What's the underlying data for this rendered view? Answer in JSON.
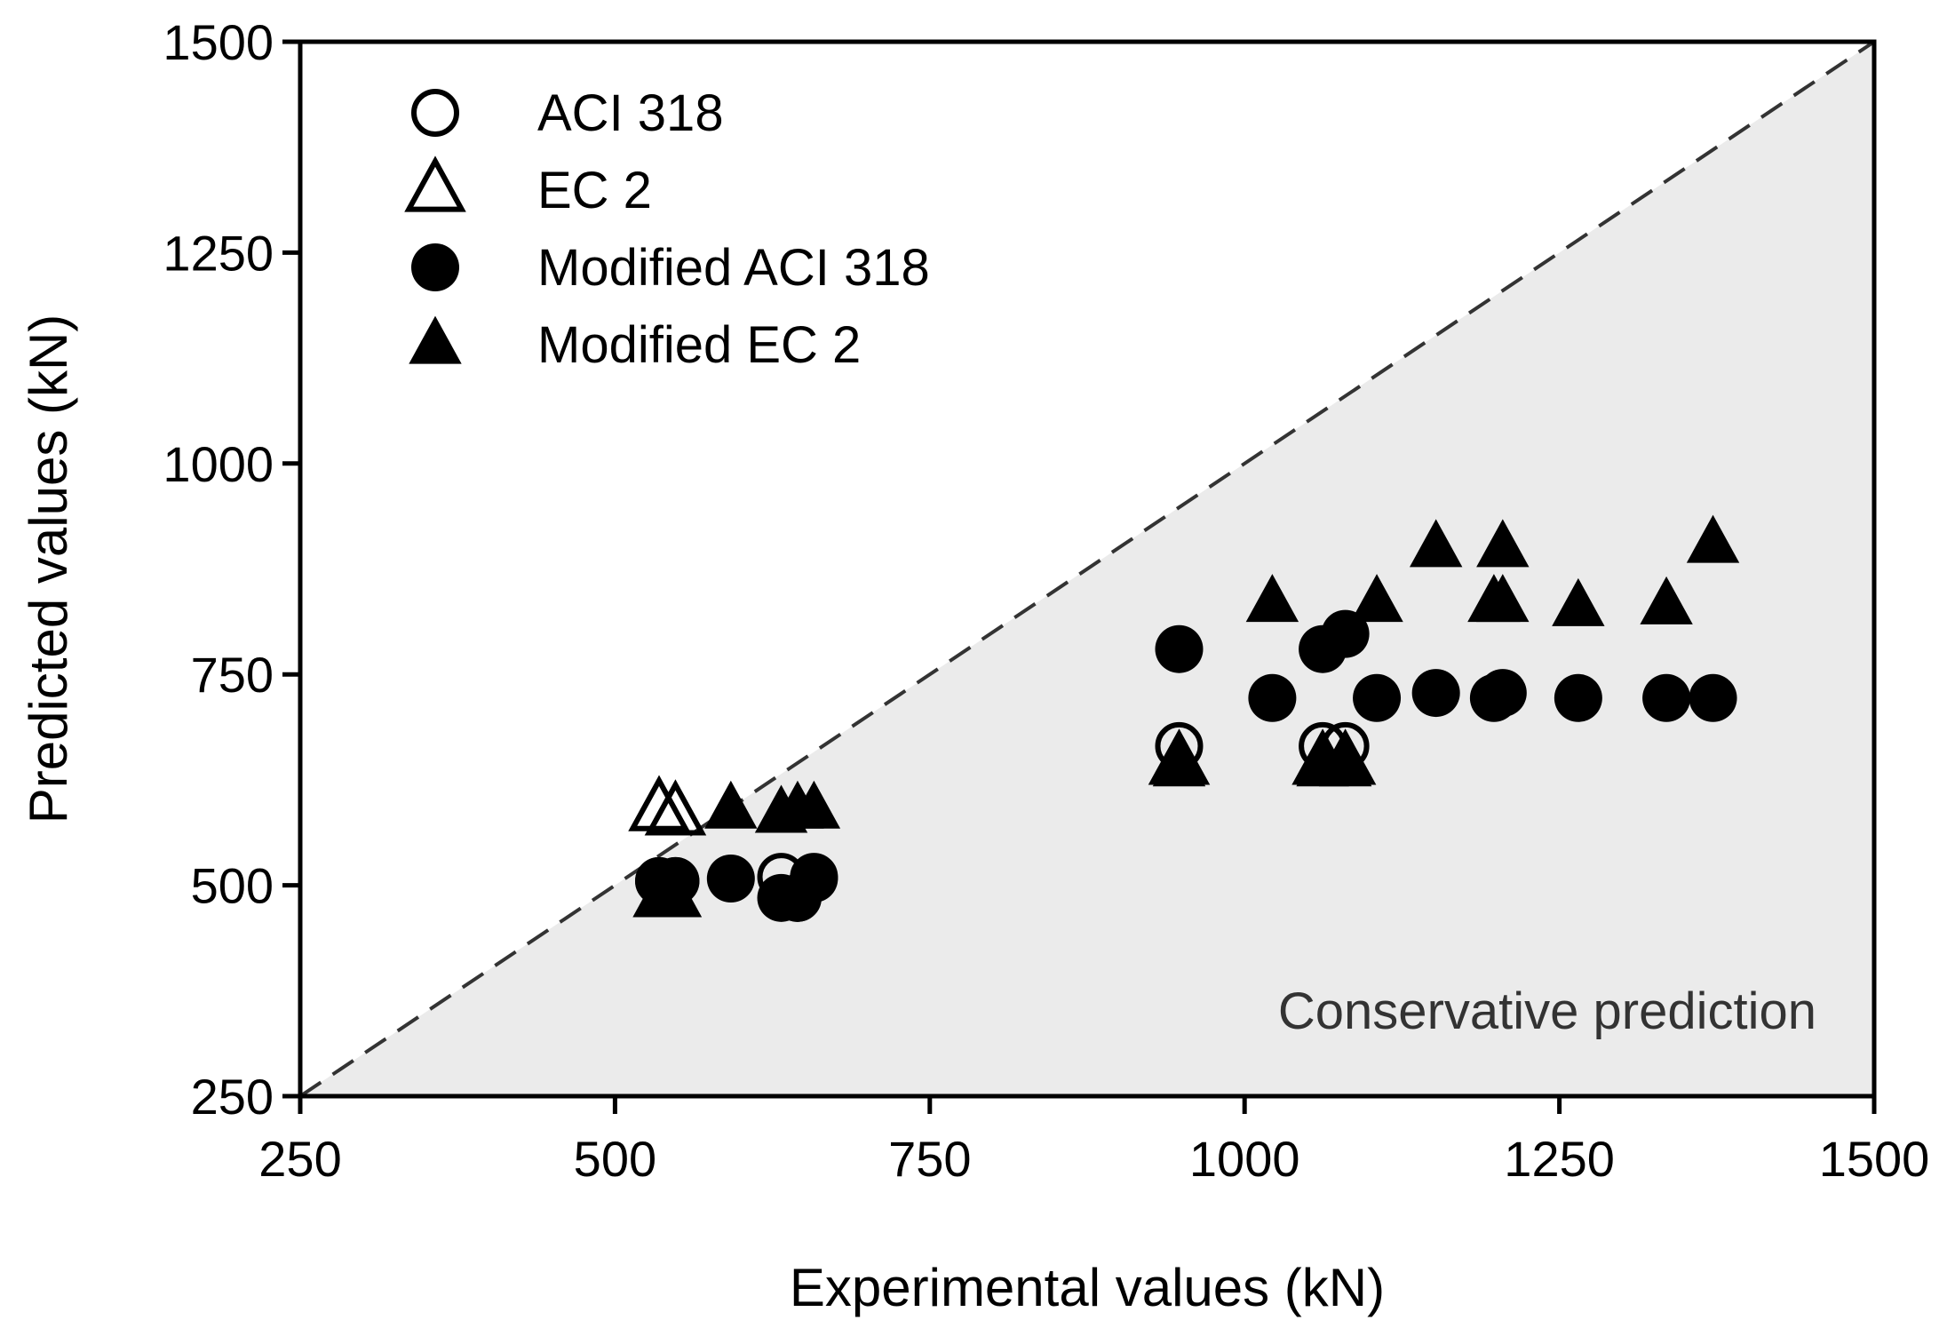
{
  "chart_data": {
    "type": "scatter",
    "title": "",
    "xlabel": "Experimental values (kN)",
    "ylabel": "Predicted values (kN)",
    "xlim": [
      250,
      1500
    ],
    "ylim": [
      250,
      1500
    ],
    "xticks": [
      250,
      500,
      750,
      1000,
      1250,
      1500
    ],
    "yticks": [
      250,
      500,
      750,
      1000,
      1250,
      1500
    ],
    "xtick_labels": [
      "250",
      "500",
      "750",
      "1000",
      "1250",
      "1500"
    ],
    "ytick_labels": [
      "250",
      "500",
      "750",
      "1000",
      "1250",
      "1500"
    ],
    "legend_position": "top-left",
    "reference_line": {
      "label": "y = x",
      "style": "dashed"
    },
    "shaded_region": "below diagonal",
    "annotation": "Conservative prediction",
    "series": [
      {
        "name": "ACI 318",
        "marker": "circle-open",
        "points": [
          [
            535,
            505
          ],
          [
            548,
            505
          ],
          [
            632,
            510
          ],
          [
            645,
            485
          ],
          [
            658,
            510
          ],
          [
            948,
            665
          ],
          [
            1062,
            665
          ],
          [
            1080,
            665
          ]
        ]
      },
      {
        "name": "EC 2",
        "marker": "triangle-open",
        "points": [
          [
            535,
            590
          ],
          [
            548,
            585
          ],
          [
            948,
            645
          ],
          [
            1062,
            645
          ],
          [
            1080,
            645
          ]
        ]
      },
      {
        "name": "Modified ACI 318",
        "marker": "circle-filled",
        "points": [
          [
            535,
            505
          ],
          [
            548,
            505
          ],
          [
            592,
            508
          ],
          [
            632,
            485
          ],
          [
            645,
            485
          ],
          [
            658,
            508
          ],
          [
            948,
            780
          ],
          [
            1022,
            722
          ],
          [
            1062,
            780
          ],
          [
            1080,
            798
          ],
          [
            1105,
            722
          ],
          [
            1152,
            728
          ],
          [
            1198,
            722
          ],
          [
            1205,
            728
          ],
          [
            1265,
            722
          ],
          [
            1335,
            722
          ],
          [
            1372,
            722
          ]
        ]
      },
      {
        "name": "Modified EC 2",
        "marker": "triangle-filled",
        "points": [
          [
            535,
            485
          ],
          [
            548,
            485
          ],
          [
            592,
            590
          ],
          [
            632,
            585
          ],
          [
            645,
            590
          ],
          [
            658,
            590
          ],
          [
            948,
            640
          ],
          [
            1022,
            835
          ],
          [
            1062,
            640
          ],
          [
            1080,
            640
          ],
          [
            1105,
            835
          ],
          [
            1152,
            900
          ],
          [
            1198,
            835
          ],
          [
            1205,
            900
          ],
          [
            1205,
            835
          ],
          [
            1265,
            830
          ],
          [
            1335,
            832
          ],
          [
            1372,
            905
          ]
        ]
      }
    ]
  }
}
